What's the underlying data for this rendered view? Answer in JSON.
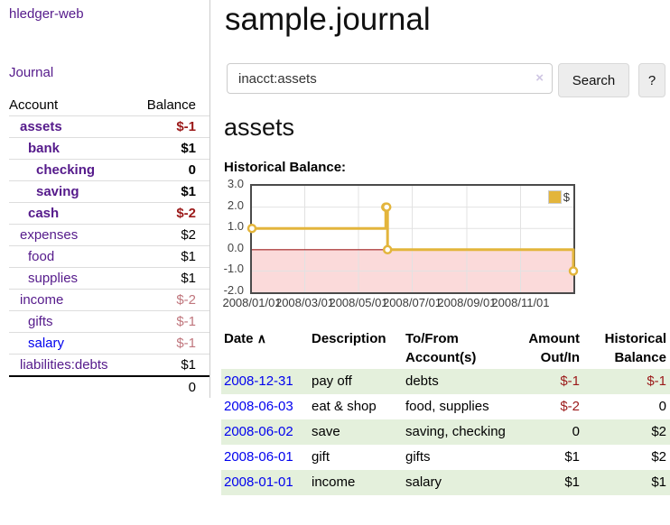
{
  "sidebar": {
    "app_title": "hledger-web",
    "nav": {
      "journal_label": "Journal"
    },
    "accounts_table": {
      "account_header": "Account",
      "balance_header": "Balance",
      "items": [
        {
          "label": "assets",
          "depth": 1,
          "bold": true,
          "link_color": "purple",
          "balance": "$-1",
          "balance_style": "neg"
        },
        {
          "label": "bank",
          "depth": 2,
          "bold": true,
          "link_color": "purple",
          "balance": "$1",
          "balance_style": "pos"
        },
        {
          "label": "checking",
          "depth": 3,
          "bold": true,
          "link_color": "purple",
          "balance": "0",
          "balance_style": "pos"
        },
        {
          "label": "saving",
          "depth": 3,
          "bold": true,
          "link_color": "purple",
          "balance": "$1",
          "balance_style": "pos"
        },
        {
          "label": "cash",
          "depth": 2,
          "bold": true,
          "link_color": "purple",
          "balance": "$-2",
          "balance_style": "neg"
        },
        {
          "label": "expenses",
          "depth": 1,
          "bold": false,
          "link_color": "purple",
          "balance": "$2",
          "balance_style": "pos"
        },
        {
          "label": "food",
          "depth": 2,
          "bold": false,
          "link_color": "purple",
          "balance": "$1",
          "balance_style": "pos"
        },
        {
          "label": "supplies",
          "depth": 2,
          "bold": false,
          "link_color": "purple",
          "balance": "$1",
          "balance_style": "pos"
        },
        {
          "label": "income",
          "depth": 1,
          "bold": false,
          "link_color": "purple",
          "balance": "$-2",
          "balance_style": "neg-light"
        },
        {
          "label": "gifts",
          "depth": 2,
          "bold": false,
          "link_color": "purple",
          "balance": "$-1",
          "balance_style": "neg-light"
        },
        {
          "label": "salary",
          "depth": 2,
          "bold": false,
          "link_color": "blue",
          "balance": "$-1",
          "balance_style": "neg-light"
        },
        {
          "label": "liabilities:debts",
          "depth": 1,
          "bold": false,
          "link_color": "purple",
          "balance": "$1",
          "balance_style": "pos"
        }
      ],
      "total": "0"
    }
  },
  "main": {
    "title": "sample.journal",
    "search": {
      "value": "inacct:assets",
      "clear_icon": "×",
      "button_label": "Search",
      "help_label": "?"
    },
    "account_heading": "assets",
    "chart_label": "Historical Balance:",
    "register": {
      "headers": {
        "date": "Date",
        "sort_icon": "∧",
        "description": "Description",
        "accounts": "To/From Account(s)",
        "amount": "Amount Out/In",
        "balance": "Historical Balance"
      },
      "rows": [
        {
          "date": "2008-12-31",
          "description": "pay off",
          "accounts": "debts",
          "amount": "$-1",
          "amount_style": "neg",
          "balance": "$-1",
          "balance_style": "neg"
        },
        {
          "date": "2008-06-03",
          "description": "eat & shop",
          "accounts": "food, supplies",
          "amount": "$-2",
          "amount_style": "neg",
          "balance": "0",
          "balance_style": "pos"
        },
        {
          "date": "2008-06-02",
          "description": "save",
          "accounts": "saving, checking",
          "amount": "0",
          "amount_style": "pos",
          "balance": "$2",
          "balance_style": "pos"
        },
        {
          "date": "2008-06-01",
          "description": "gift",
          "accounts": "gifts",
          "amount": "$1",
          "amount_style": "pos",
          "balance": "$2",
          "balance_style": "pos"
        },
        {
          "date": "2008-01-01",
          "description": "income",
          "accounts": "salary",
          "amount": "$1",
          "amount_style": "pos",
          "balance": "$1",
          "balance_style": "pos"
        }
      ]
    }
  },
  "chart_data": {
    "type": "line",
    "step": true,
    "title": "Historical Balance:",
    "series": [
      {
        "name": "$",
        "color": "#e3b53c",
        "points": [
          {
            "date": "2008-01-01",
            "value": 1
          },
          {
            "date": "2008-06-01",
            "value": 2
          },
          {
            "date": "2008-06-02",
            "value": 2
          },
          {
            "date": "2008-06-03",
            "value": 0
          },
          {
            "date": "2008-12-31",
            "value": -1
          }
        ]
      }
    ],
    "ylim": [
      -2,
      3
    ],
    "yticks": [
      "3.0",
      "2.0",
      "1.0",
      "0.0",
      "-1.0",
      "-2.0"
    ],
    "xticks": [
      "2008/01/01",
      "2008/03/01",
      "2008/05/01",
      "2008/07/01",
      "2008/09/01",
      "2008/11/01"
    ],
    "xrange": [
      "2008-01-01",
      "2008-12-31"
    ],
    "grid": true,
    "legend_position": "top-right",
    "negative_fill": "#fbdada",
    "zero_line_color": "#a02020",
    "gridline_color": "#e2e2e2"
  },
  "colors": {
    "link_purple": "#551a8b",
    "link_blue": "#0000ee",
    "negative_dark": "#9b1919",
    "negative_light": "#c0767d",
    "row_stripe_green": "#e4f0dc",
    "series_gold": "#e3b53c",
    "button_bg": "#ededed"
  }
}
